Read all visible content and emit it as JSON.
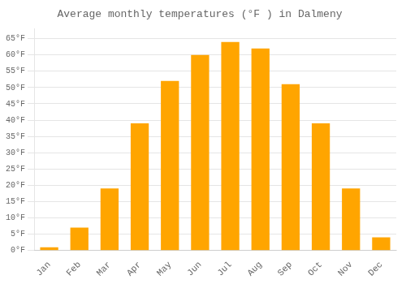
{
  "chart_data": {
    "type": "bar",
    "title": "Average monthly temperatures (°F ) in Dalmeny",
    "categories": [
      "Jan",
      "Feb",
      "Mar",
      "Apr",
      "May",
      "Jun",
      "Jul",
      "Aug",
      "Sep",
      "Oct",
      "Nov",
      "Dec"
    ],
    "values": [
      1,
      7,
      19,
      39,
      52,
      60,
      64,
      62,
      51,
      39,
      19,
      4
    ],
    "color": "#FFA500",
    "ylim": [
      0,
      68
    ],
    "yticks": [
      {
        "value": 0,
        "label": "0°F"
      },
      {
        "value": 5,
        "label": "5°F"
      },
      {
        "value": 10,
        "label": "10°F"
      },
      {
        "value": 15,
        "label": "15°F"
      },
      {
        "value": 20,
        "label": "20°F"
      },
      {
        "value": 25,
        "label": "25°F"
      },
      {
        "value": 30,
        "label": "30°F"
      },
      {
        "value": 35,
        "label": "35°F"
      },
      {
        "value": 40,
        "label": "40°F"
      },
      {
        "value": 45,
        "label": "45°F"
      },
      {
        "value": 50,
        "label": "50°F"
      },
      {
        "value": 55,
        "label": "55°F"
      },
      {
        "value": 60,
        "label": "60°F"
      },
      {
        "value": 65,
        "label": "65°F"
      }
    ],
    "grid": true
  }
}
